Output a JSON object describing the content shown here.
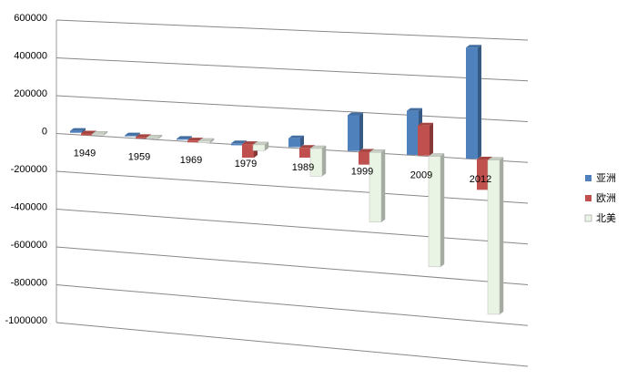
{
  "chart_data": {
    "type": "bar3d",
    "categories": [
      "1949",
      "1959",
      "1969",
      "1979",
      "1989",
      "1999",
      "2009",
      "2012"
    ],
    "series": [
      {
        "name": "亚洲",
        "color": "#4f81bd",
        "values": [
          10000,
          5000,
          5000,
          -10000,
          45000,
          180000,
          220000,
          550000
        ]
      },
      {
        "name": "欧洲",
        "color": "#c0504d",
        "values": [
          -10000,
          -8000,
          -10000,
          -70000,
          -50000,
          -65000,
          150000,
          -150000
        ]
      },
      {
        "name": "北美",
        "color": "#eaf4e4",
        "values": [
          -5000,
          -5000,
          -8000,
          -30000,
          -140000,
          -350000,
          -550000,
          -760000
        ]
      }
    ],
    "ylim": [
      -1000000,
      600000
    ],
    "yticks": [
      -1000000,
      -800000,
      -600000,
      -400000,
      -200000,
      0,
      200000,
      400000,
      600000
    ],
    "grid": true,
    "legend": "right"
  }
}
